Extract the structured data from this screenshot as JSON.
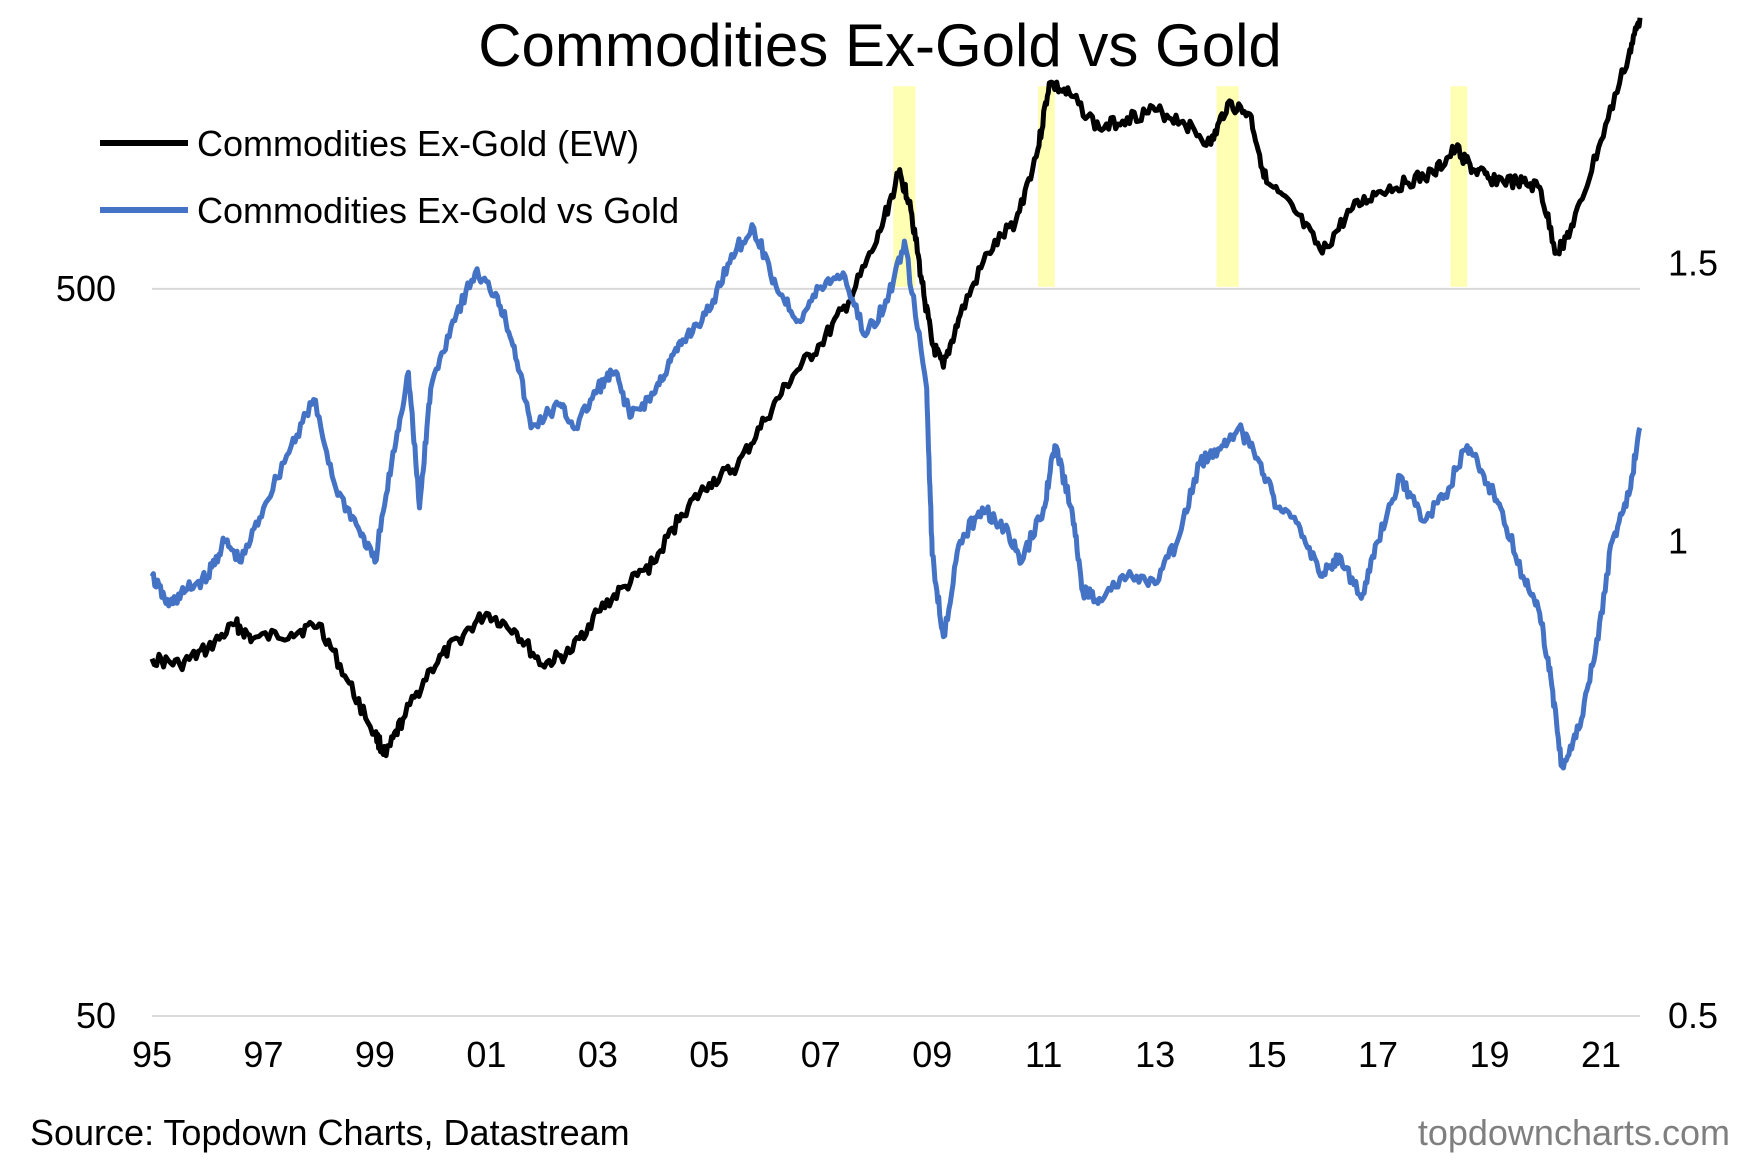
{
  "title": "Commodities Ex-Gold vs Gold",
  "source": "Source: Topdown Charts, Datastream",
  "brand": "topdowncharts.com",
  "colors": {
    "ew": "#000000",
    "ratio": "#4472c4",
    "highlight": "#ffff99",
    "grid": "#d9d9d9"
  },
  "chart_data": {
    "type": "line",
    "title": "Commodities Ex-Gold vs Gold",
    "grid": "horizontal at left-axis ticks",
    "legend_position": "top-left",
    "x_axis": {
      "ticks": [
        "95",
        "97",
        "99",
        "01",
        "03",
        "05",
        "07",
        "09",
        "11",
        "13",
        "15",
        "17",
        "19",
        "21"
      ],
      "range": [
        1995,
        2021.7
      ]
    },
    "y_left": {
      "scale": "log",
      "ticks": [
        50,
        500
      ],
      "range": [
        50,
        1000
      ]
    },
    "y_right": {
      "scale": "log",
      "ticks": [
        0.5,
        1,
        1.5
      ],
      "range": [
        0.5,
        1.99
      ]
    },
    "highlights": [
      [
        2008.3,
        2008.7
      ],
      [
        2010.9,
        2011.2
      ],
      [
        2014.1,
        2014.5
      ],
      [
        2018.3,
        2018.6
      ]
    ],
    "series": [
      {
        "name": "Commodities Ex-Gold (EW)",
        "axis": "left",
        "values": [
          [
            1995.0,
            155
          ],
          [
            1995.5,
            152
          ],
          [
            1996.0,
            160
          ],
          [
            1996.5,
            173
          ],
          [
            1996.8,
            165
          ],
          [
            1997.5,
            168
          ],
          [
            1998.0,
            173
          ],
          [
            1998.5,
            145
          ],
          [
            1999.0,
            122
          ],
          [
            1999.2,
            114
          ],
          [
            1999.5,
            128
          ],
          [
            2000.0,
            150
          ],
          [
            2000.5,
            165
          ],
          [
            2001.0,
            179
          ],
          [
            2001.5,
            170
          ],
          [
            2002.0,
            152
          ],
          [
            2002.5,
            158
          ],
          [
            2003.0,
            180
          ],
          [
            2003.5,
            195
          ],
          [
            2004.0,
            210
          ],
          [
            2004.5,
            245
          ],
          [
            2005.0,
            270
          ],
          [
            2005.5,
            285
          ],
          [
            2006.0,
            330
          ],
          [
            2006.5,
            380
          ],
          [
            2007.0,
            420
          ],
          [
            2007.5,
            480
          ],
          [
            2008.0,
            580
          ],
          [
            2008.4,
            720
          ],
          [
            2008.6,
            660
          ],
          [
            2008.8,
            520
          ],
          [
            2009.0,
            420
          ],
          [
            2009.2,
            390
          ],
          [
            2009.5,
            460
          ],
          [
            2010.0,
            560
          ],
          [
            2010.5,
            620
          ],
          [
            2010.9,
            780
          ],
          [
            2011.1,
            960
          ],
          [
            2011.5,
            920
          ],
          [
            2012.0,
            830
          ],
          [
            2012.5,
            860
          ],
          [
            2013.0,
            880
          ],
          [
            2013.5,
            850
          ],
          [
            2014.0,
            790
          ],
          [
            2014.3,
            900
          ],
          [
            2014.7,
            870
          ],
          [
            2015.0,
            700
          ],
          [
            2015.5,
            640
          ],
          [
            2016.0,
            560
          ],
          [
            2016.5,
            640
          ],
          [
            2017.0,
            680
          ],
          [
            2017.5,
            700
          ],
          [
            2018.0,
            720
          ],
          [
            2018.4,
            780
          ],
          [
            2018.7,
            730
          ],
          [
            2019.0,
            710
          ],
          [
            2019.5,
            700
          ],
          [
            2019.9,
            690
          ],
          [
            2020.2,
            560
          ],
          [
            2020.5,
            610
          ],
          [
            2021.0,
            800
          ],
          [
            2021.5,
            1050
          ],
          [
            2021.7,
            1180
          ]
        ]
      },
      {
        "name": "Commodities Ex-Gold vs Gold",
        "axis": "right",
        "values": [
          [
            1995.0,
            0.95
          ],
          [
            1995.3,
            0.91
          ],
          [
            1995.6,
            0.93
          ],
          [
            1996.0,
            0.95
          ],
          [
            1996.3,
            1.0
          ],
          [
            1996.6,
            0.97
          ],
          [
            1997.0,
            1.05
          ],
          [
            1997.5,
            1.15
          ],
          [
            1997.9,
            1.23
          ],
          [
            1998.3,
            1.08
          ],
          [
            1998.7,
            1.02
          ],
          [
            1999.0,
            0.97
          ],
          [
            1999.3,
            1.12
          ],
          [
            1999.6,
            1.28
          ],
          [
            1999.8,
            1.05
          ],
          [
            2000.0,
            1.25
          ],
          [
            2000.4,
            1.38
          ],
          [
            2000.8,
            1.48
          ],
          [
            2001.2,
            1.43
          ],
          [
            2001.5,
            1.33
          ],
          [
            2001.8,
            1.18
          ],
          [
            2002.3,
            1.22
          ],
          [
            2002.6,
            1.18
          ],
          [
            2003.0,
            1.25
          ],
          [
            2003.3,
            1.28
          ],
          [
            2003.6,
            1.2
          ],
          [
            2004.0,
            1.24
          ],
          [
            2004.3,
            1.3
          ],
          [
            2004.6,
            1.35
          ],
          [
            2005.0,
            1.4
          ],
          [
            2005.4,
            1.52
          ],
          [
            2005.8,
            1.58
          ],
          [
            2006.2,
            1.45
          ],
          [
            2006.6,
            1.38
          ],
          [
            2007.0,
            1.45
          ],
          [
            2007.4,
            1.48
          ],
          [
            2007.8,
            1.35
          ],
          [
            2008.2,
            1.42
          ],
          [
            2008.5,
            1.55
          ],
          [
            2008.9,
            1.25
          ],
          [
            2009.0,
            0.98
          ],
          [
            2009.2,
            0.87
          ],
          [
            2009.5,
            1.0
          ],
          [
            2009.9,
            1.05
          ],
          [
            2010.3,
            1.02
          ],
          [
            2010.6,
            0.97
          ],
          [
            2011.0,
            1.05
          ],
          [
            2011.2,
            1.15
          ],
          [
            2011.5,
            1.05
          ],
          [
            2011.7,
            0.93
          ],
          [
            2012.0,
            0.92
          ],
          [
            2012.5,
            0.95
          ],
          [
            2013.0,
            0.94
          ],
          [
            2013.4,
            1.0
          ],
          [
            2013.8,
            1.12
          ],
          [
            2014.2,
            1.15
          ],
          [
            2014.5,
            1.18
          ],
          [
            2014.9,
            1.12
          ],
          [
            2015.2,
            1.05
          ],
          [
            2015.6,
            1.02
          ],
          [
            2016.0,
            0.95
          ],
          [
            2016.3,
            0.98
          ],
          [
            2016.7,
            0.92
          ],
          [
            2017.0,
            1.0
          ],
          [
            2017.4,
            1.1
          ],
          [
            2017.8,
            1.03
          ],
          [
            2018.2,
            1.07
          ],
          [
            2018.6,
            1.15
          ],
          [
            2018.9,
            1.1
          ],
          [
            2019.2,
            1.05
          ],
          [
            2019.6,
            0.95
          ],
          [
            2019.9,
            0.9
          ],
          [
            2020.1,
            0.82
          ],
          [
            2020.3,
            0.72
          ],
          [
            2020.6,
            0.76
          ],
          [
            2020.9,
            0.85
          ],
          [
            2021.2,
            1.0
          ],
          [
            2021.5,
            1.07
          ],
          [
            2021.7,
            1.18
          ]
        ]
      }
    ]
  }
}
